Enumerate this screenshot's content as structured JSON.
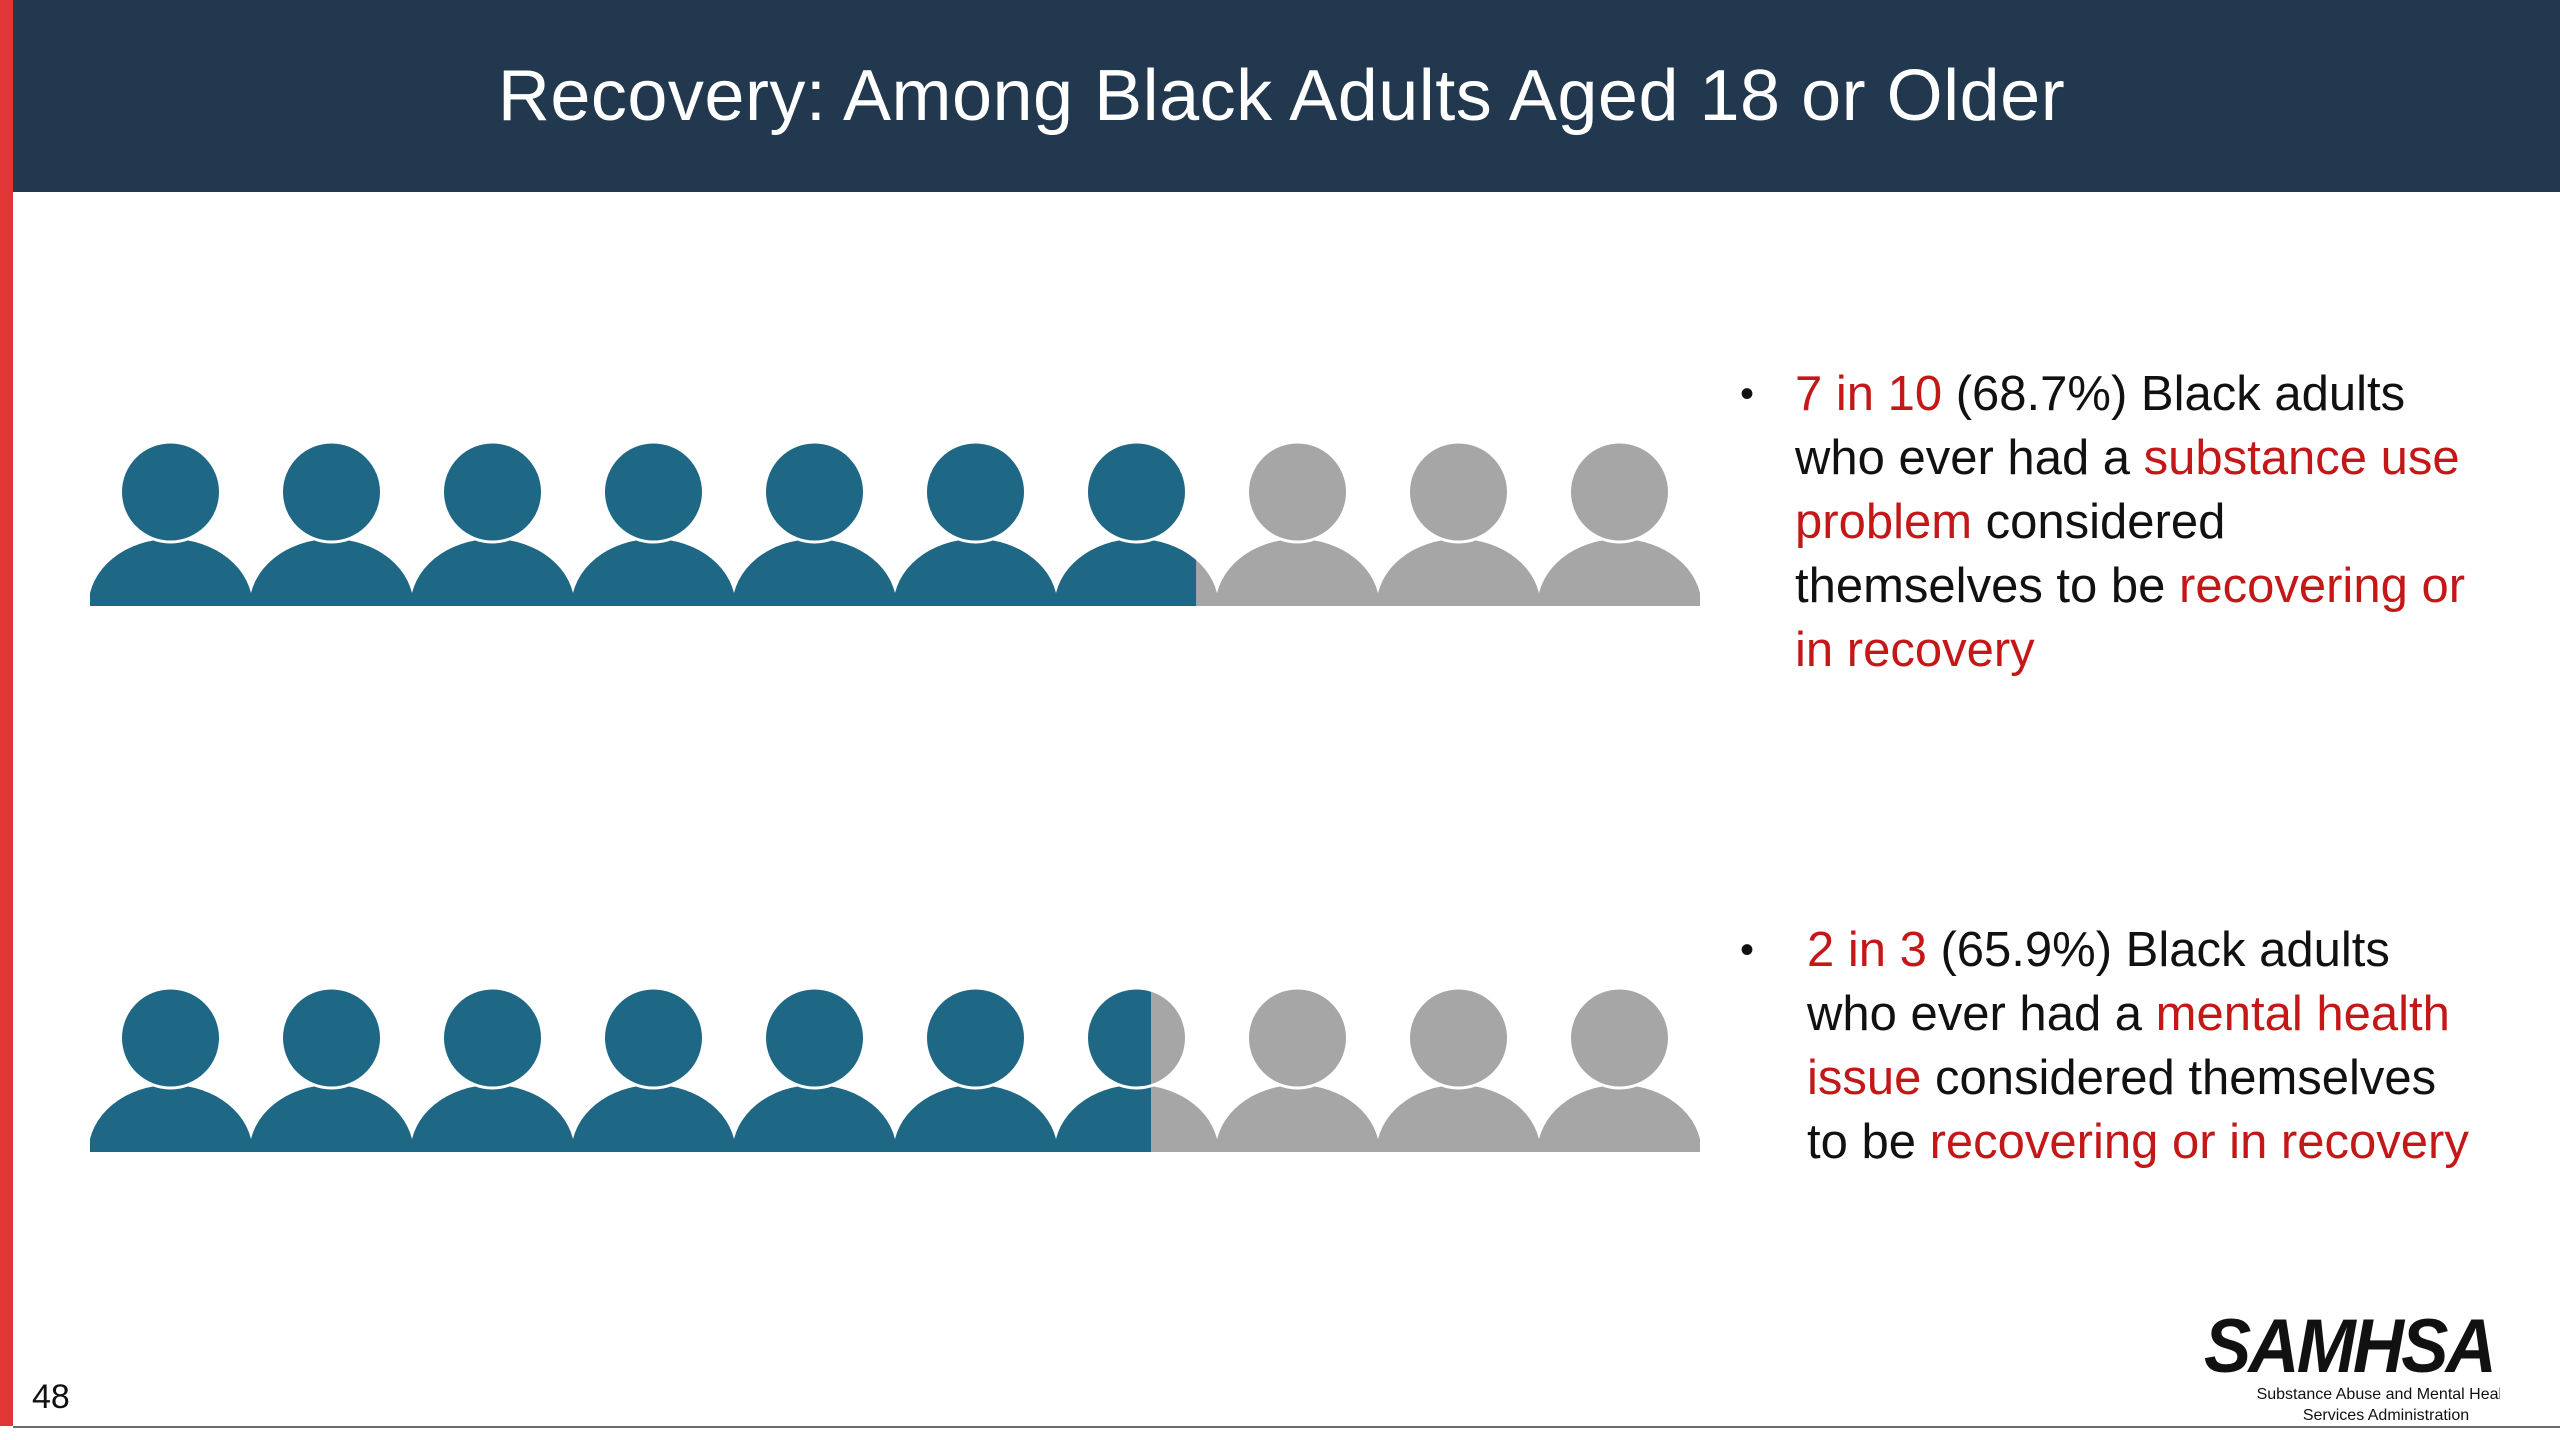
{
  "slide": {
    "title": "Recovery: Among Black Adults Aged 18 or Older",
    "page_number": "48"
  },
  "colors": {
    "title_bar": "#22384e",
    "accent_left_bar": "#e03636",
    "figure_filled": "#1e6886",
    "figure_empty": "#a6a6a6",
    "highlight_text": "#c41818"
  },
  "rows": [
    {
      "icon": "person-icon",
      "total_figures": 10,
      "filled_fraction": 0.687,
      "bullet": {
        "part1_highlight": "7 in 10",
        "part2": " (68.7%) Black adults who ever had a ",
        "part3_highlight": "substance use problem",
        "part4": " considered themselves to be ",
        "part5_highlight": "recovering or in recovery"
      }
    },
    {
      "icon": "person-icon",
      "total_figures": 10,
      "filled_fraction": 0.659,
      "bullet": {
        "part1_highlight": "2 in 3",
        "part2": " (65.9%) Black adults who ever had a ",
        "part3_highlight": "mental health issue",
        "part4": " considered themselves to be ",
        "part5_highlight": "recovering or in recovery"
      }
    }
  ],
  "logo": {
    "wordmark": "SAMHSA",
    "subtitle_line1": "Substance Abuse and Mental Health",
    "subtitle_line2": "Services Administration"
  }
}
